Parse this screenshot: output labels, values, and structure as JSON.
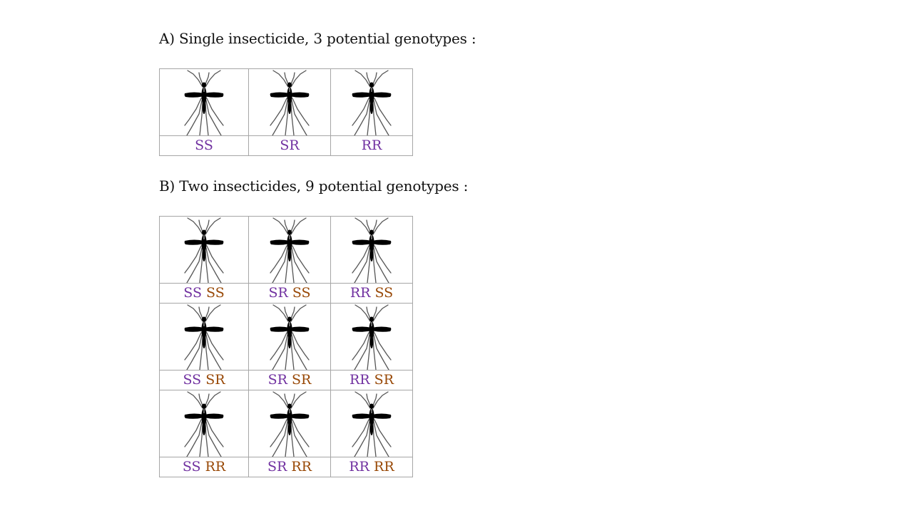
{
  "section_a": {
    "heading": "A) Single insecticide, 3 potential genotypes :",
    "labels": [
      "SS",
      "SR",
      "RR"
    ]
  },
  "section_b": {
    "heading": "B) Two insecticides, 9 potential genotypes :",
    "rows": [
      [
        [
          "SS",
          "SS"
        ],
        [
          "SR",
          "SS"
        ],
        [
          "RR",
          "SS"
        ]
      ],
      [
        [
          "SS",
          "SR"
        ],
        [
          "SR",
          "SR"
        ],
        [
          "RR",
          "SR"
        ]
      ],
      [
        [
          "SS",
          "RR"
        ],
        [
          "SR",
          "RR"
        ],
        [
          "RR",
          "RR"
        ]
      ]
    ]
  },
  "colors": {
    "insecticide_1_genotype": "#7030a0",
    "insecticide_2_genotype": "#984806",
    "grid_border": "#a6a6a6"
  },
  "icons": {
    "cell_image": "mosquito-icon"
  }
}
